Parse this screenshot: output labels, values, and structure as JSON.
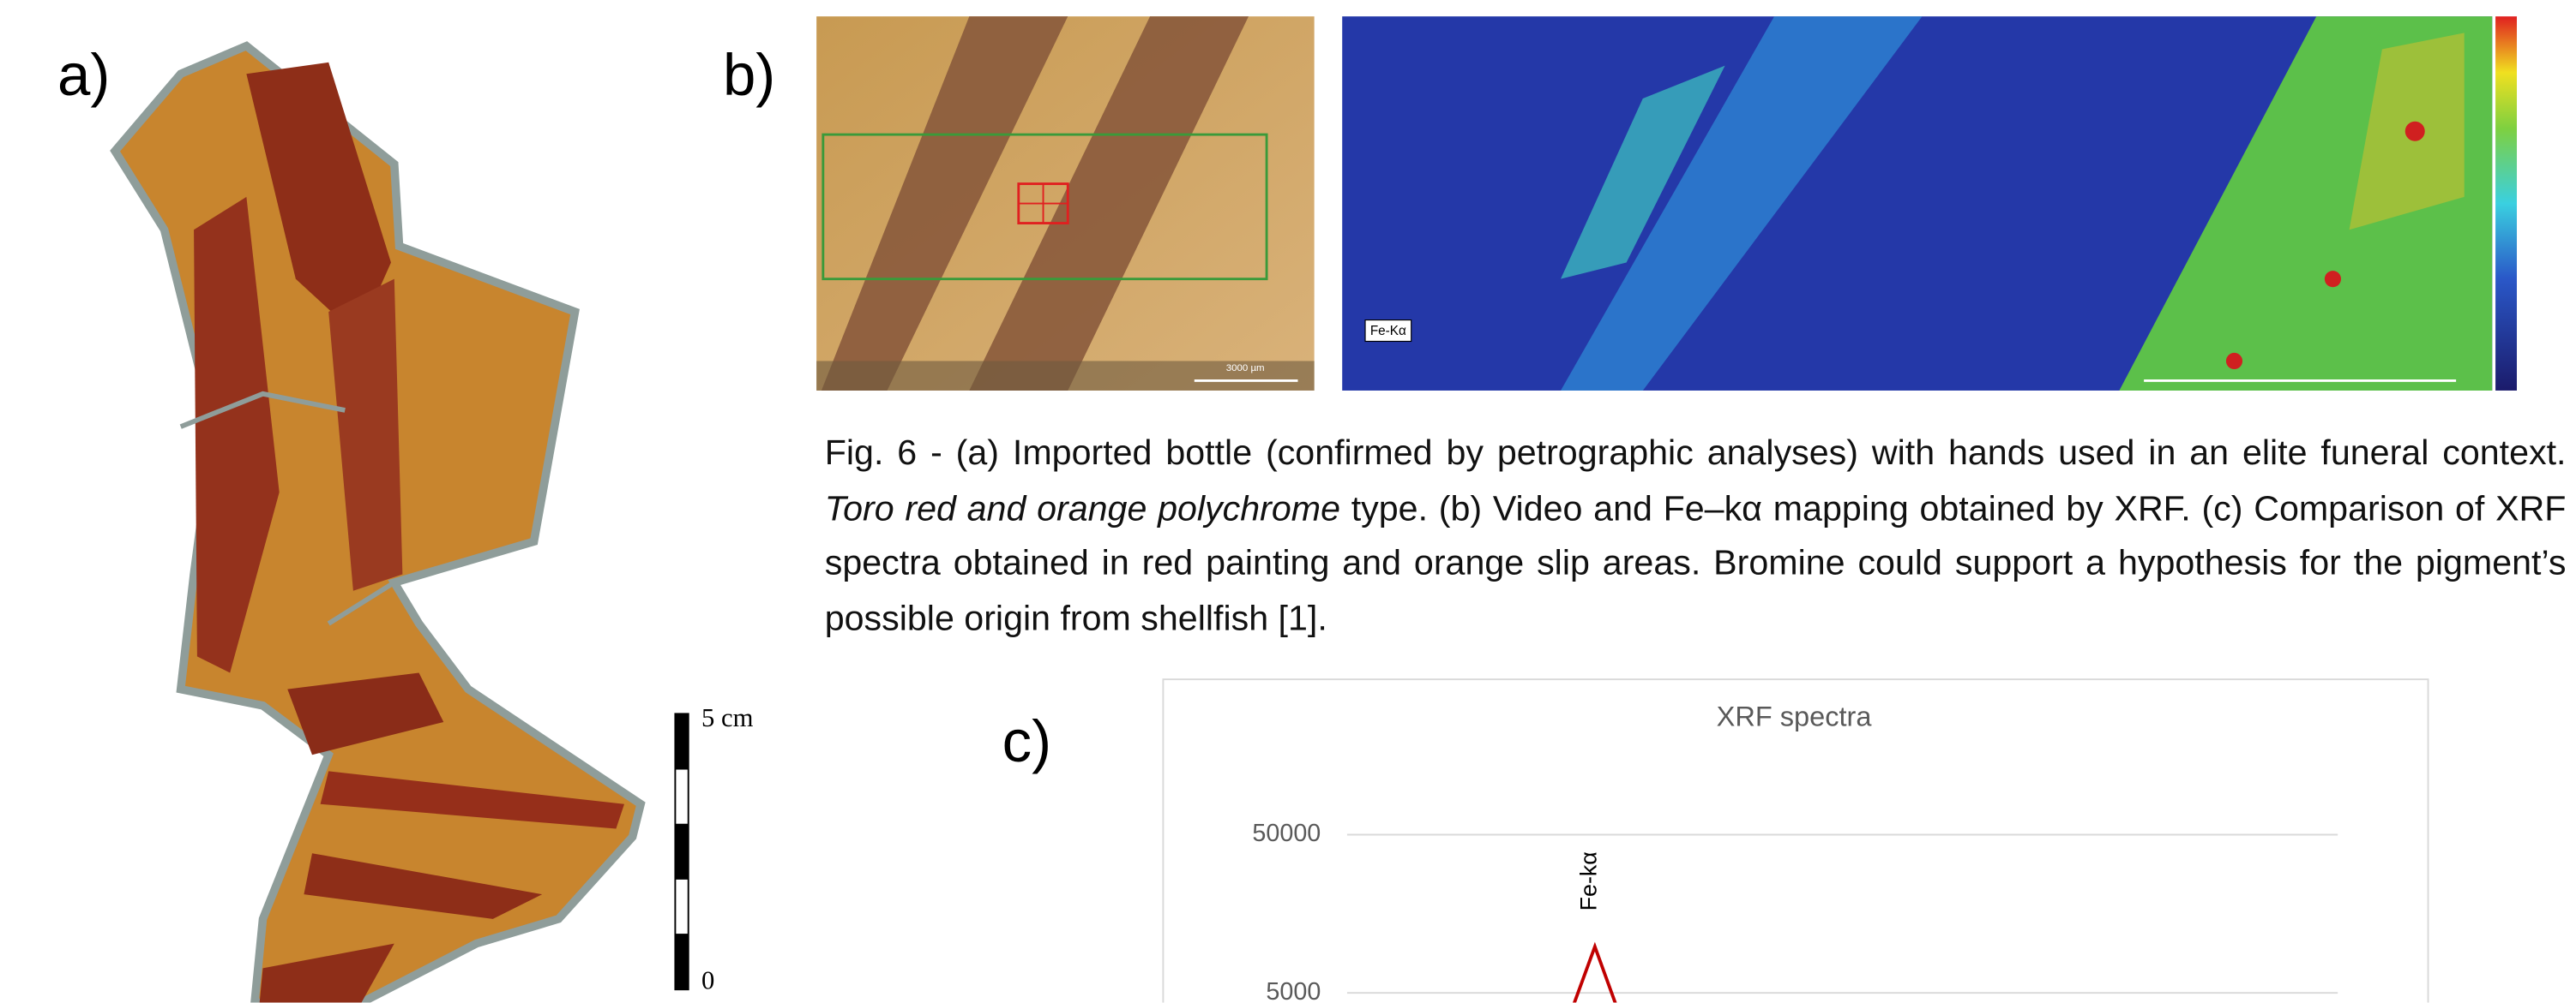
{
  "panels": {
    "a": "a)",
    "b": "b)",
    "c": "c)"
  },
  "scale_bar": {
    "top": "5 cm",
    "bottom": "0"
  },
  "micrograph": {
    "scale": "3000 µm"
  },
  "map": {
    "label": "Fe-Kα"
  },
  "caption": {
    "part1": "Fig. 6 - (a) Imported bottle (confirmed by petrographic analyses) with hands used in an elite funeral context. ",
    "italic": "Toro red and orange polychrome",
    "part2": " type. (b) Video and Fe–kα mapping obtained by XRF. (c) Comparison of XRF spectra obtained in red painting and orange slip areas. Bromine could support a hypothesis for the pigment’s possible origin from shellfish [1]."
  },
  "chart_data": {
    "type": "line",
    "title": "XRF spectra",
    "log_y": true,
    "grid": true,
    "ylim": [
      4340,
      120000
    ],
    "yticks": [
      5000,
      50000
    ],
    "annotation": "Fe-kα",
    "series": [
      {
        "color": "#c00000",
        "values": [
          3000,
          3000,
          3000,
          3000,
          3000,
          3000,
          3000,
          3000,
          3000,
          3000,
          3000,
          4300,
          9800,
          4300,
          3000,
          3000,
          3000,
          3000,
          3000,
          3000,
          3000,
          3000,
          3000,
          3000,
          3000,
          3000,
          3000,
          3000,
          3000,
          3000,
          3000,
          3000,
          3000,
          3000,
          3000,
          3000,
          3000,
          3000,
          3000,
          3000,
          3000,
          3000,
          3000,
          3000,
          3000,
          3000,
          3000,
          3000,
          3000
        ]
      }
    ]
  }
}
